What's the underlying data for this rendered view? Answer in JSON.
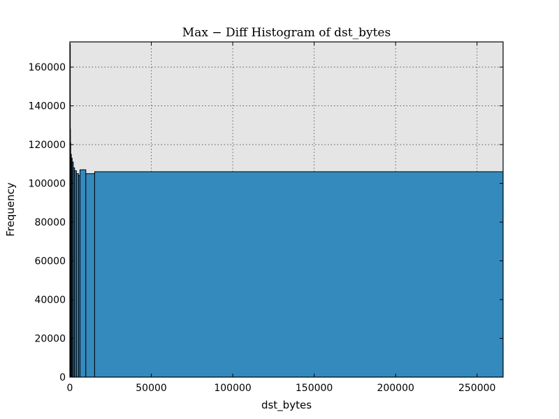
{
  "chart_data": {
    "type": "bar",
    "title": "Max − Diff Histogram of dst_bytes",
    "xlabel": "dst_bytes",
    "ylabel": "Frequency",
    "xlim": [
      0,
      266000
    ],
    "ylim": [
      0,
      173000
    ],
    "x_ticks": [
      0,
      50000,
      100000,
      150000,
      200000,
      250000
    ],
    "y_ticks": [
      0,
      20000,
      40000,
      60000,
      80000,
      100000,
      120000,
      140000,
      160000
    ],
    "grid": true,
    "bins": [
      {
        "x0": 0,
        "x1": 90,
        "value": 172000
      },
      {
        "x0": 90,
        "x1": 240,
        "value": 128000
      },
      {
        "x0": 240,
        "x1": 500,
        "value": 121000
      },
      {
        "x0": 500,
        "x1": 900,
        "value": 115000
      },
      {
        "x0": 900,
        "x1": 1400,
        "value": 113000
      },
      {
        "x0": 1400,
        "x1": 2100,
        "value": 111000
      },
      {
        "x0": 2100,
        "x1": 2900,
        "value": 108000
      },
      {
        "x0": 2900,
        "x1": 4000,
        "value": 106500
      },
      {
        "x0": 4000,
        "x1": 5300,
        "value": 105000
      },
      {
        "x0": 5300,
        "x1": 6200,
        "value": 104000
      },
      {
        "x0": 6200,
        "x1": 9800,
        "value": 107000
      },
      {
        "x0": 9800,
        "x1": 15200,
        "value": 105000
      },
      {
        "x0": 15200,
        "x1": 266000,
        "value": 106000
      }
    ],
    "colors": {
      "bar_fill": "#348abd",
      "bar_edge": "#000000",
      "plot_background": "#e5e5e5",
      "grid": "#444444"
    }
  }
}
